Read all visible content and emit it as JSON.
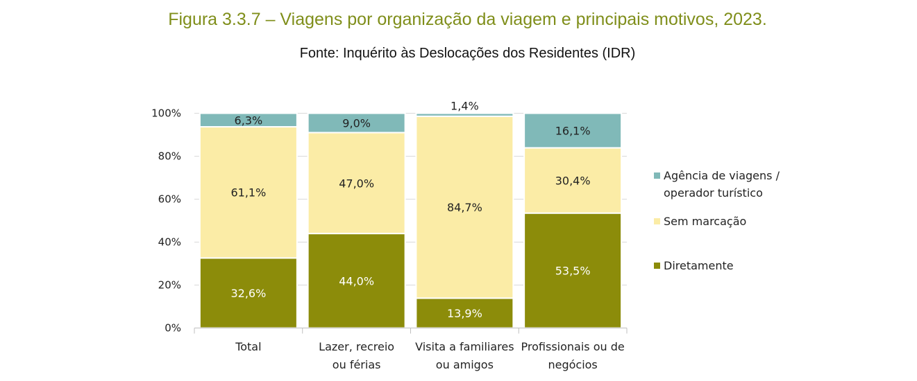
{
  "title": "Figura 3.3.7 – Viagens por organização da viagem e principais motivos, 2023.",
  "subtitle": "Fonte: Inquérito às Deslocações dos Residentes (IDR)",
  "chart_data": {
    "type": "bar",
    "stacked": true,
    "percent": true,
    "categories": [
      [
        "Total"
      ],
      [
        "Lazer, recreio",
        "ou férias"
      ],
      [
        "Visita a familiares",
        "ou amigos"
      ],
      [
        "Profissionais ou de",
        "negócios"
      ]
    ],
    "series": [
      {
        "name": "Diretamente",
        "color": "#8c8c0a",
        "values": [
          32.6,
          44.0,
          13.9,
          53.5
        ],
        "labels": [
          "32,6%",
          "44,0%",
          "13,9%",
          "53,5%"
        ],
        "label_color": "#ffffff"
      },
      {
        "name": "Sem marcação",
        "color": "#fbeca6",
        "values": [
          61.1,
          47.0,
          84.7,
          30.4
        ],
        "labels": [
          "61,1%",
          "47,0%",
          "84,7%",
          "30,4%"
        ],
        "label_color": "#222222"
      },
      {
        "name": "Agência de viagens / operador turístico",
        "legend_lines": [
          "Agência de viagens /",
          "operador turístico"
        ],
        "color": "#80b9b8",
        "values": [
          6.3,
          9.0,
          1.4,
          16.1
        ],
        "labels": [
          "6,3%",
          "9,0%",
          "1,4%",
          "16,1%"
        ],
        "label_color": "#222222"
      }
    ],
    "yticks": [
      "0%",
      "20%",
      "40%",
      "60%",
      "80%",
      "100%"
    ],
    "ylim": [
      0,
      100
    ],
    "grid": true,
    "legend_position": "right"
  }
}
